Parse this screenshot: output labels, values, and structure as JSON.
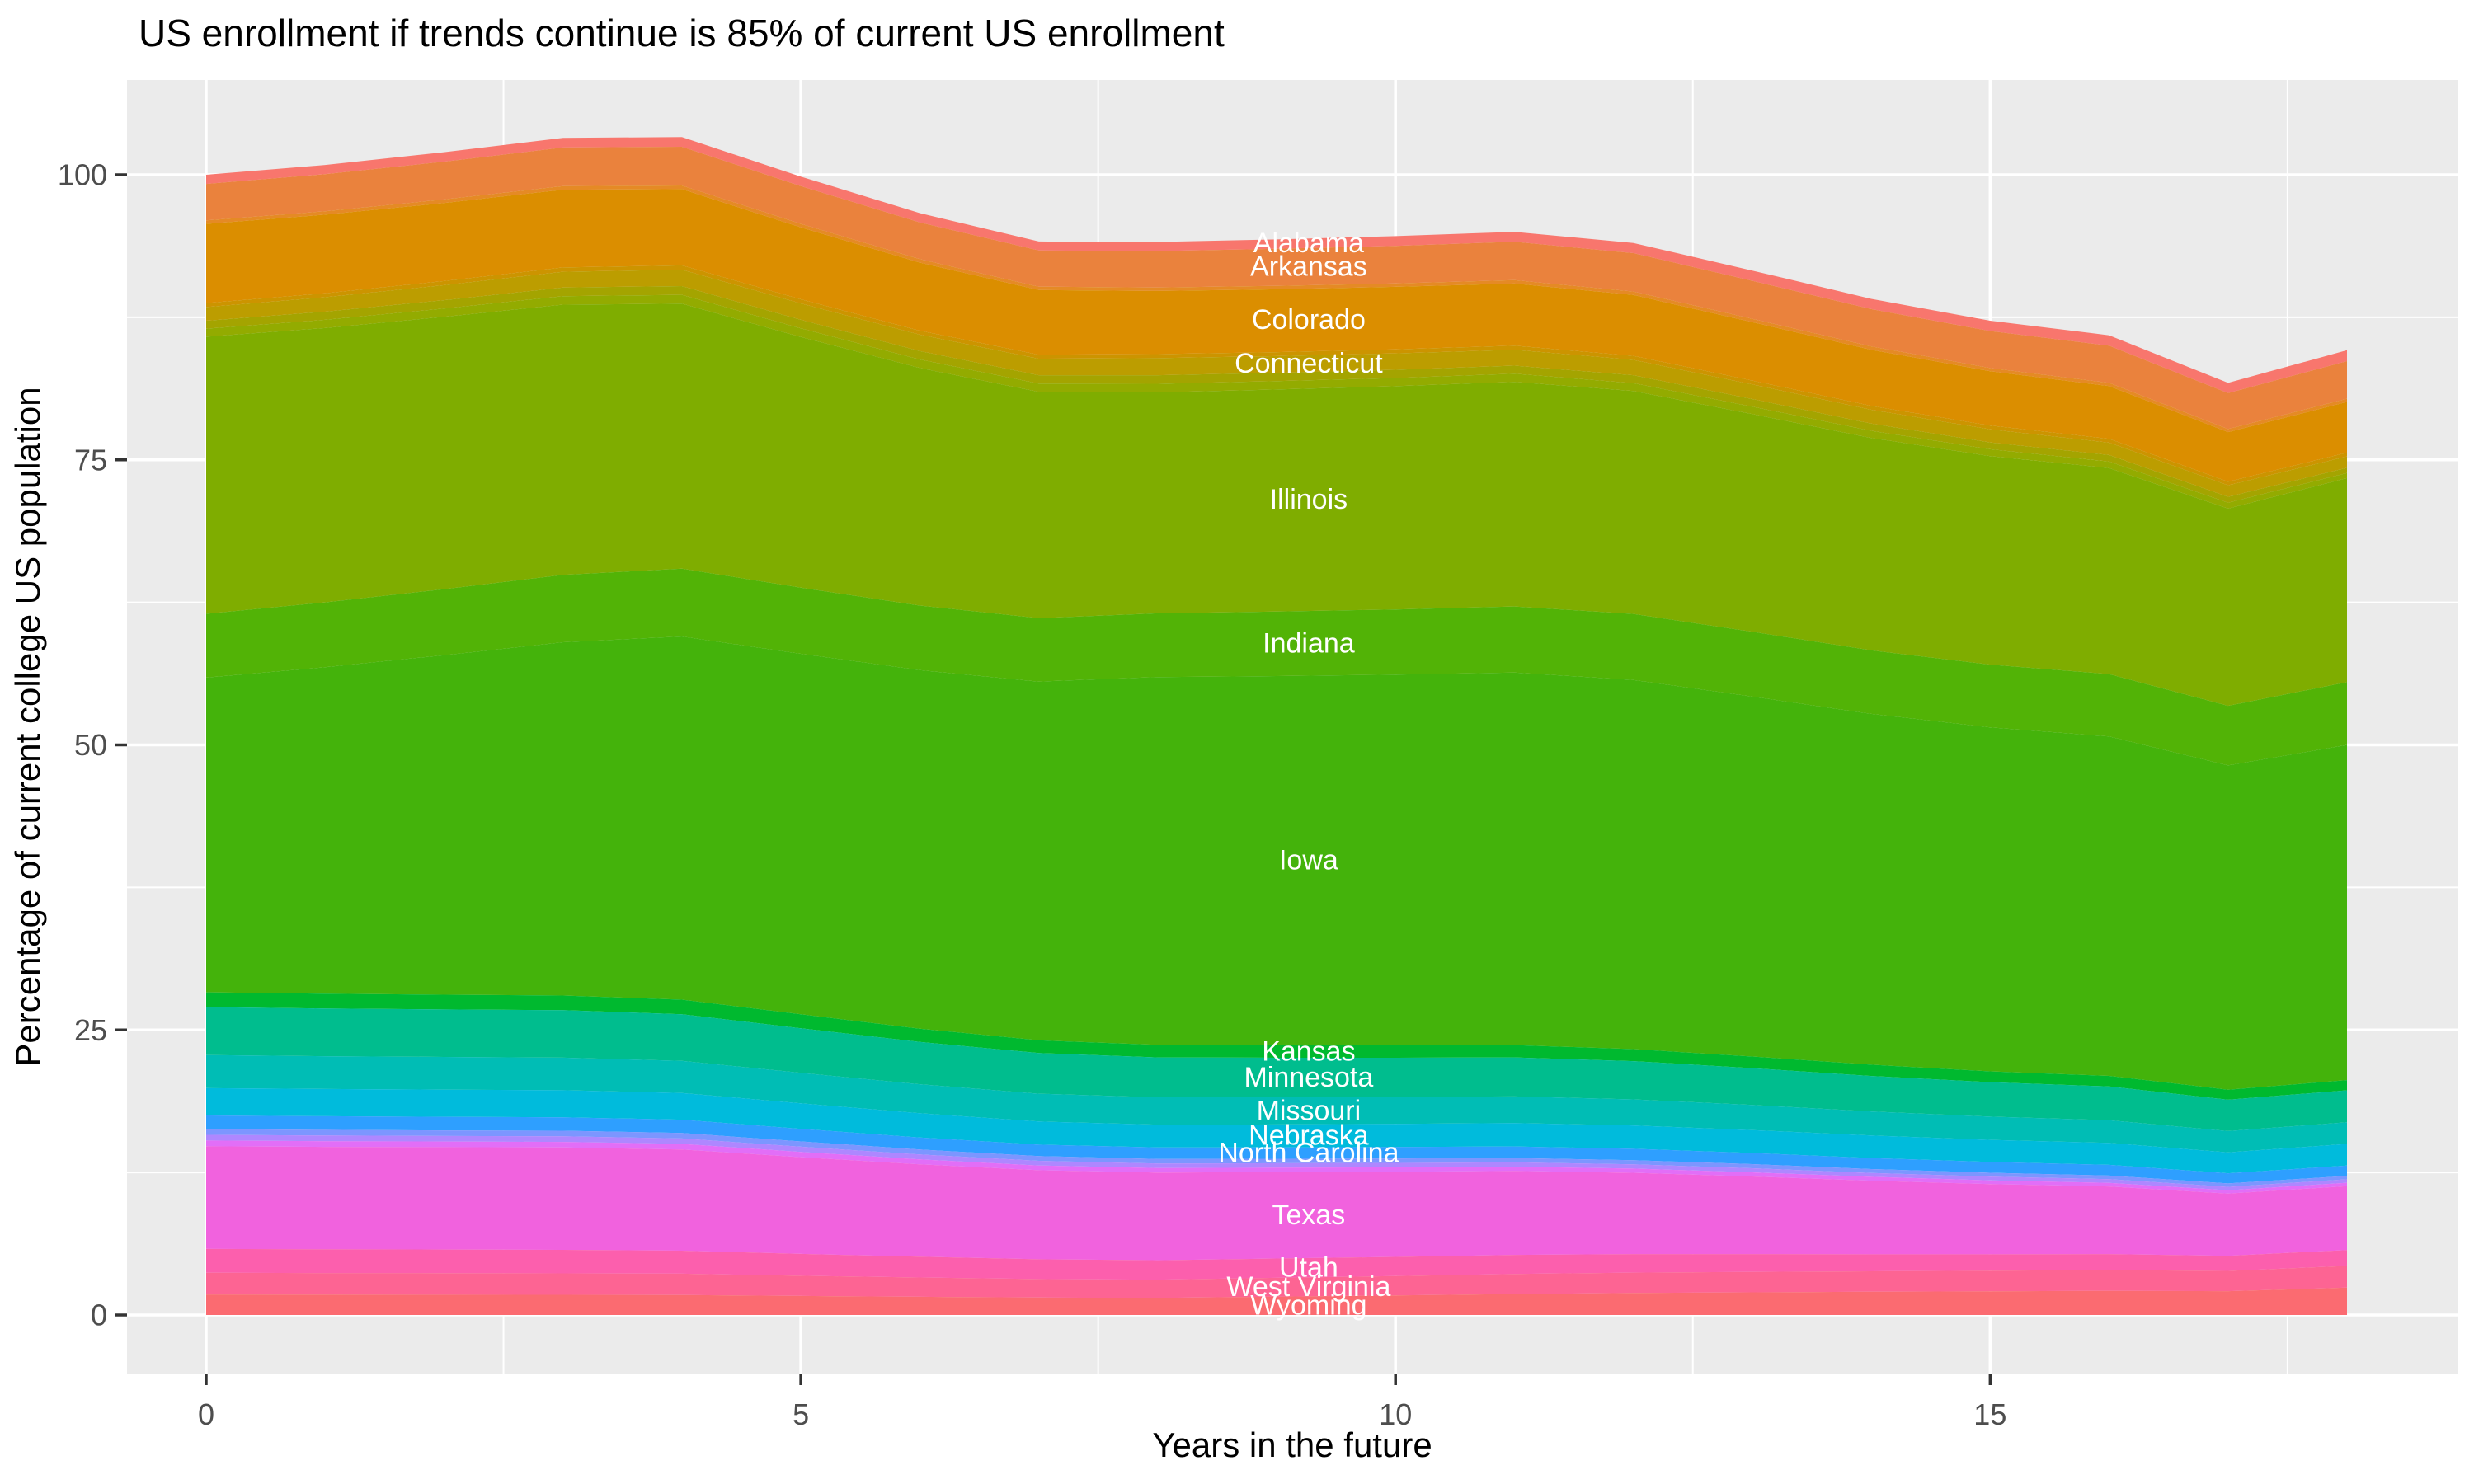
{
  "title": "US enrollment if trends continue is 85% of current US enrollment",
  "styles": {
    "background": "#FFFFFF",
    "panel_background": "#EBEBEB",
    "grid_color": "#FFFFFF",
    "tick_mark_color": "#333333",
    "tick_label_color": "#4D4D4D",
    "title_color": "#000000",
    "axis_title_color": "#000000",
    "band_label_color": "#FFFFFF"
  },
  "chart_data": {
    "type": "area",
    "stacked": true,
    "title": "US enrollment if trends continue is 85% of current US enrollment",
    "xlabel": "Years in the future",
    "ylabel": "Percentage of current college US population",
    "legend": "none (white direct labels drawn on bands)",
    "grid": "white major and minor gridlines on grey panel",
    "xlim": [
      -0.66,
      18.93
    ],
    "ylim": [
      -5.1,
      108.4
    ],
    "x_ticks": [
      0,
      5,
      10,
      15
    ],
    "x_minor_ticks": [
      2.5,
      7.5,
      12.5,
      17.5
    ],
    "y_ticks": [
      0,
      25,
      50,
      75,
      100
    ],
    "y_minor_ticks": [
      12.5,
      37.5,
      62.5,
      87.5
    ],
    "x": [
      0,
      1,
      2,
      3,
      4,
      5,
      6,
      7,
      8,
      9,
      10,
      11,
      12,
      13,
      14,
      15,
      16,
      17,
      18
    ],
    "label_x": 9.27,
    "totals_approx": [
      100.0,
      100.8,
      101.9,
      103.1,
      103.1,
      99.6,
      96.4,
      93.9,
      93.8,
      94.1,
      94.4,
      94.8,
      93.9,
      91.5,
      89.1,
      87.3,
      86.1,
      82.2,
      84.9
    ],
    "series": [
      {
        "name": "Alabama",
        "color": "#F8766D",
        "labeled": true,
        "values": [
          0.8,
          0.81,
          0.83,
          0.84,
          0.85,
          0.83,
          0.81,
          0.79,
          0.8,
          0.82,
          0.85,
          0.88,
          0.89,
          0.9,
          0.9,
          0.9,
          0.91,
          0.9,
          0.95
        ]
      },
      {
        "name": "Arkansas",
        "color": "#EA823D",
        "labeled": true,
        "values": [
          3.2,
          3.25,
          3.31,
          3.38,
          3.4,
          3.31,
          3.23,
          3.17,
          3.2,
          3.25,
          3.3,
          3.36,
          3.37,
          3.33,
          3.27,
          3.25,
          3.26,
          3.15,
          3.3
        ]
      },
      {
        "name": "",
        "color": "#E58A25",
        "labeled": false,
        "values": [
          0.3,
          0.3,
          0.31,
          0.32,
          0.32,
          0.31,
          0.3,
          0.3,
          0.3,
          0.3,
          0.3,
          0.3,
          0.3,
          0.29,
          0.29,
          0.28,
          0.28,
          0.27,
          0.28
        ]
      },
      {
        "name": "Colorado",
        "color": "#DB8E00",
        "labeled": true,
        "values": [
          6.95,
          6.89,
          6.85,
          6.82,
          6.69,
          6.31,
          5.97,
          5.67,
          5.54,
          5.51,
          5.48,
          5.45,
          5.34,
          5.13,
          4.93,
          4.76,
          4.63,
          4.34,
          4.45
        ]
      },
      {
        "name": "",
        "color": "#CC9400",
        "labeled": false,
        "values": [
          0.35,
          0.35,
          0.36,
          0.37,
          0.37,
          0.36,
          0.35,
          0.35,
          0.35,
          0.35,
          0.35,
          0.35,
          0.35,
          0.34,
          0.34,
          0.33,
          0.33,
          0.32,
          0.33
        ]
      },
      {
        "name": "Connecticut",
        "color": "#BC9D00",
        "labeled": true,
        "values": [
          1.2,
          1.26,
          1.32,
          1.39,
          1.44,
          1.44,
          1.44,
          1.45,
          1.5,
          1.47,
          1.44,
          1.4,
          1.35,
          1.28,
          1.21,
          1.15,
          1.09,
          1.01,
          1.0
        ]
      },
      {
        "name": "",
        "color": "#A4A400",
        "labeled": false,
        "values": [
          0.7,
          0.72,
          0.73,
          0.75,
          0.77,
          0.75,
          0.74,
          0.73,
          0.75,
          0.73,
          0.72,
          0.71,
          0.69,
          0.66,
          0.63,
          0.6,
          0.57,
          0.52,
          0.45
        ]
      },
      {
        "name": "",
        "color": "#93AB00",
        "labeled": false,
        "values": [
          0.7,
          0.72,
          0.73,
          0.75,
          0.77,
          0.75,
          0.74,
          0.73,
          0.75,
          0.73,
          0.72,
          0.71,
          0.69,
          0.66,
          0.63,
          0.6,
          0.57,
          0.52,
          0.45
        ]
      },
      {
        "name": "Illinois",
        "color": "#7FAD00",
        "labeled": true,
        "values": [
          24.3,
          24.06,
          23.88,
          23.7,
          23.24,
          21.99,
          20.84,
          19.85,
          19.38,
          19.48,
          19.58,
          19.7,
          19.55,
          19.09,
          18.63,
          18.29,
          18.07,
          17.29,
          17.9
        ]
      },
      {
        "name": "Indiana",
        "color": "#52B306",
        "labeled": true,
        "values": [
          5.6,
          5.69,
          5.79,
          5.91,
          5.95,
          5.8,
          5.66,
          5.56,
          5.59,
          5.65,
          5.72,
          5.8,
          5.79,
          5.68,
          5.57,
          5.5,
          5.47,
          5.23,
          5.5
        ]
      },
      {
        "name": "Iowa",
        "color": "#44B30B",
        "labeled": true,
        "values": [
          27.6,
          28.63,
          29.78,
          30.98,
          31.85,
          31.62,
          31.45,
          31.46,
          32.26,
          32.39,
          32.51,
          32.67,
          32.38,
          31.57,
          30.77,
          30.17,
          29.77,
          28.44,
          29.4
        ]
      },
      {
        "name": "Kansas",
        "color": "#00B92F",
        "labeled": true,
        "values": [
          1.3,
          1.3,
          1.29,
          1.29,
          1.28,
          1.22,
          1.16,
          1.12,
          1.1,
          1.09,
          1.09,
          1.08,
          1.06,
          1.02,
          0.99,
          0.95,
          0.93,
          0.88,
          0.9
        ]
      },
      {
        "name": "Minnesota",
        "color": "#00BD8E",
        "labeled": true,
        "values": [
          4.2,
          4.18,
          4.17,
          4.16,
          4.09,
          3.91,
          3.71,
          3.56,
          3.5,
          3.47,
          3.44,
          3.42,
          3.35,
          3.23,
          3.11,
          3.02,
          2.96,
          2.75,
          2.8
        ]
      },
      {
        "name": "Missouri",
        "color": "#00BDB5",
        "labeled": true,
        "values": [
          2.9,
          2.88,
          2.87,
          2.86,
          2.82,
          2.68,
          2.55,
          2.44,
          2.4,
          2.38,
          2.36,
          2.34,
          2.29,
          2.2,
          2.11,
          2.04,
          1.99,
          1.87,
          1.9
        ]
      },
      {
        "name": "Nebraska",
        "color": "#00BBDC",
        "labeled": true,
        "values": [
          2.4,
          2.39,
          2.38,
          2.37,
          2.34,
          2.23,
          2.12,
          2.03,
          2.0,
          2.01,
          2.03,
          2.05,
          2.04,
          2.01,
          1.97,
          1.94,
          1.92,
          1.83,
          1.9
        ]
      },
      {
        "name": "North Carolina",
        "color": "#2E9FFF",
        "labeled": true,
        "values": [
          1.2,
          1.19,
          1.19,
          1.18,
          1.17,
          1.11,
          1.06,
          1.01,
          1.0,
          1.0,
          1.0,
          1.01,
          1.0,
          0.98,
          0.97,
          0.95,
          0.94,
          0.89,
          0.9
        ]
      },
      {
        "name": "",
        "color": "#7C96FF",
        "labeled": false,
        "values": [
          0.5,
          0.5,
          0.49,
          0.49,
          0.48,
          0.46,
          0.43,
          0.41,
          0.4,
          0.39,
          0.39,
          0.38,
          0.37,
          0.36,
          0.34,
          0.33,
          0.32,
          0.3,
          0.3
        ]
      },
      {
        "name": "",
        "color": "#AE87FF",
        "labeled": false,
        "values": [
          0.5,
          0.5,
          0.49,
          0.49,
          0.48,
          0.46,
          0.43,
          0.41,
          0.4,
          0.39,
          0.39,
          0.38,
          0.37,
          0.36,
          0.34,
          0.33,
          0.32,
          0.3,
          0.3
        ]
      },
      {
        "name": "",
        "color": "#E26EF7",
        "labeled": false,
        "values": [
          0.5,
          0.5,
          0.49,
          0.49,
          0.48,
          0.46,
          0.43,
          0.41,
          0.4,
          0.39,
          0.39,
          0.38,
          0.37,
          0.36,
          0.34,
          0.33,
          0.32,
          0.3,
          0.3
        ]
      },
      {
        "name": "Texas",
        "color": "#F162DE",
        "labeled": true,
        "values": [
          9.0,
          8.98,
          8.98,
          8.98,
          8.88,
          8.48,
          8.11,
          7.81,
          7.69,
          7.58,
          7.46,
          7.36,
          7.13,
          6.81,
          6.46,
          6.16,
          5.93,
          5.45,
          5.6
        ]
      },
      {
        "name": "Utah",
        "color": "#FC5FAD",
        "labeled": true,
        "values": [
          2.1,
          2.08,
          2.07,
          2.06,
          2.02,
          1.92,
          1.82,
          1.74,
          1.7,
          1.69,
          1.68,
          1.67,
          1.62,
          1.56,
          1.49,
          1.44,
          1.41,
          1.32,
          1.4
        ]
      },
      {
        "name": "West Virginia",
        "color": "#FD6493",
        "labeled": true,
        "values": [
          1.9,
          1.89,
          1.89,
          1.88,
          1.86,
          1.77,
          1.69,
          1.62,
          1.6,
          1.65,
          1.7,
          1.76,
          1.79,
          1.79,
          1.79,
          1.8,
          1.81,
          1.78,
          1.9
        ]
      },
      {
        "name": "Wyoming",
        "color": "#FB6B71",
        "labeled": true,
        "values": [
          1.8,
          1.79,
          1.78,
          1.77,
          1.76,
          1.67,
          1.6,
          1.53,
          1.5,
          1.61,
          1.72,
          1.84,
          1.93,
          1.99,
          2.04,
          2.08,
          2.12,
          2.09,
          2.4
        ]
      }
    ]
  }
}
